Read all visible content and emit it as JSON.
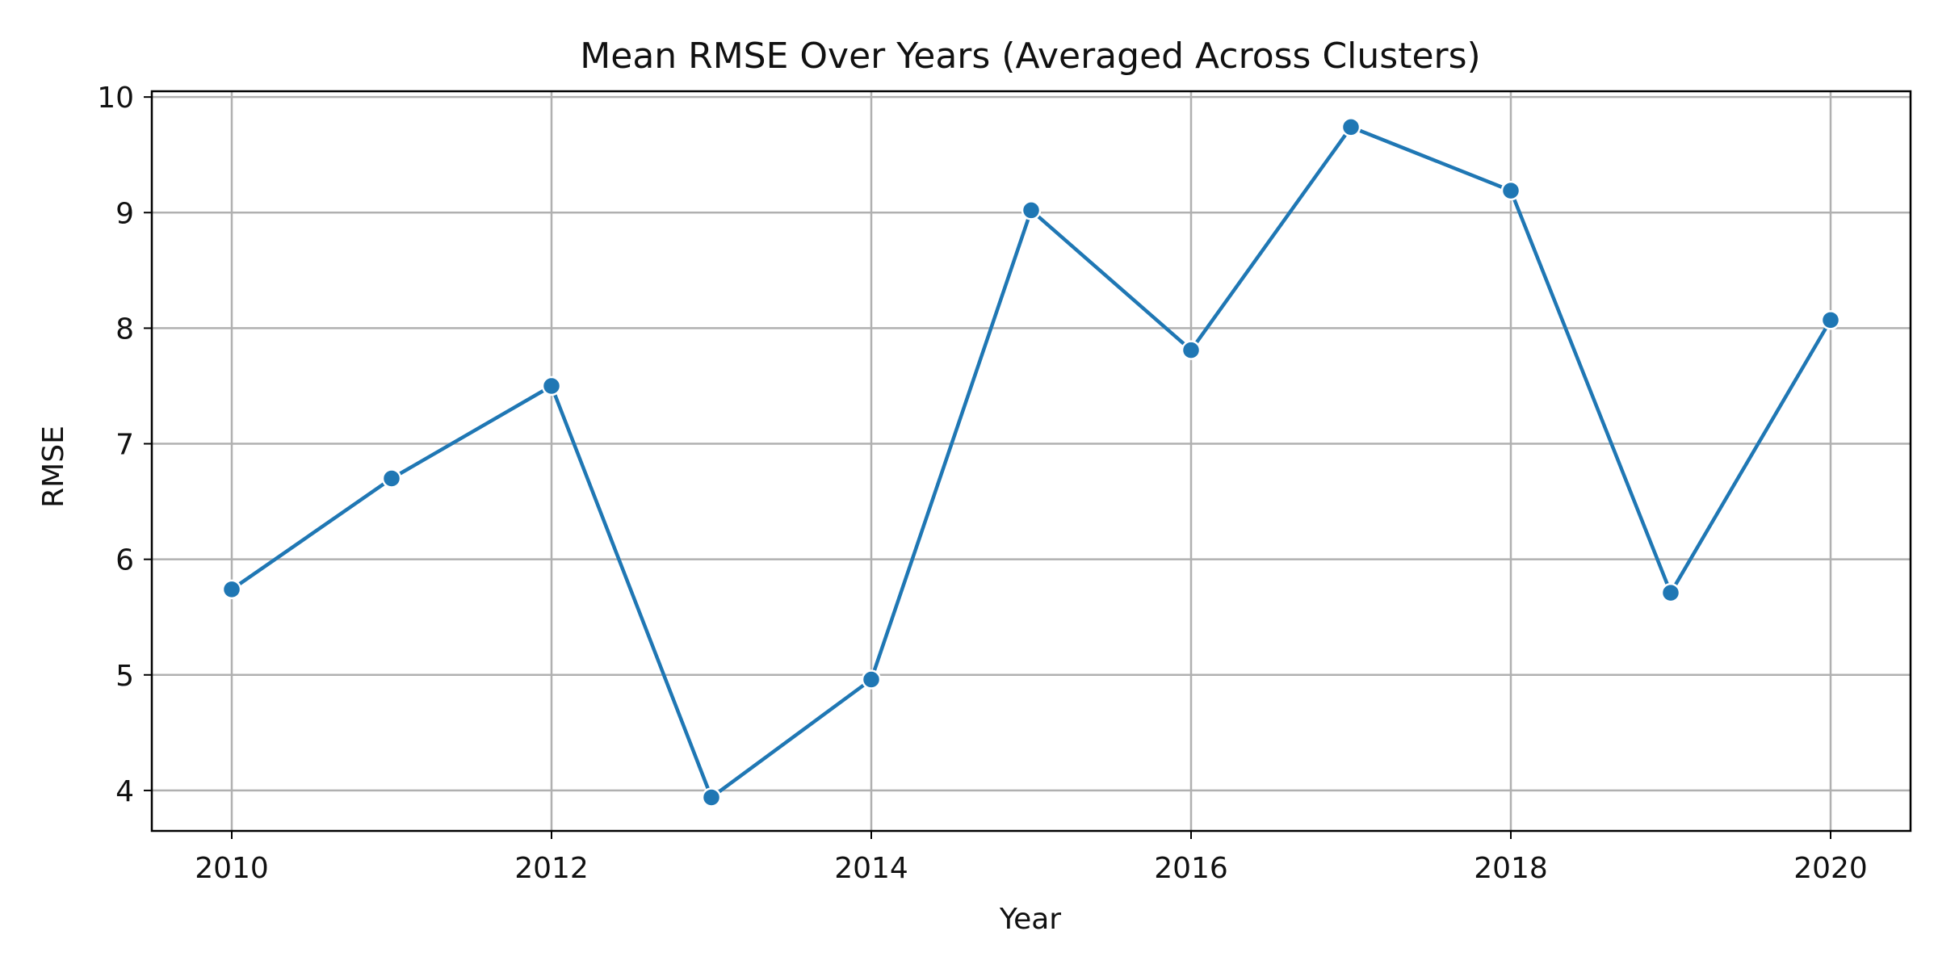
{
  "chart_data": {
    "type": "line",
    "title": "Mean RMSE Over Years (Averaged Across Clusters)",
    "xlabel": "Year",
    "ylabel": "RMSE",
    "x": [
      2010,
      2011,
      2012,
      2013,
      2014,
      2015,
      2016,
      2017,
      2018,
      2019,
      2020
    ],
    "series": [
      {
        "values": [
          5.74,
          6.7,
          7.5,
          3.94,
          4.96,
          9.02,
          7.81,
          9.74,
          9.19,
          5.71,
          8.07
        ],
        "color": "#1f77b4"
      }
    ],
    "xlim": [
      2009.5,
      2020.5
    ],
    "ylim": [
      3.65,
      10.05
    ],
    "xticks": [
      2010,
      2012,
      2014,
      2016,
      2018,
      2020
    ],
    "yticks": [
      4,
      5,
      6,
      7,
      8,
      9,
      10
    ],
    "grid": true,
    "legend": "none",
    "marker": "circle"
  }
}
